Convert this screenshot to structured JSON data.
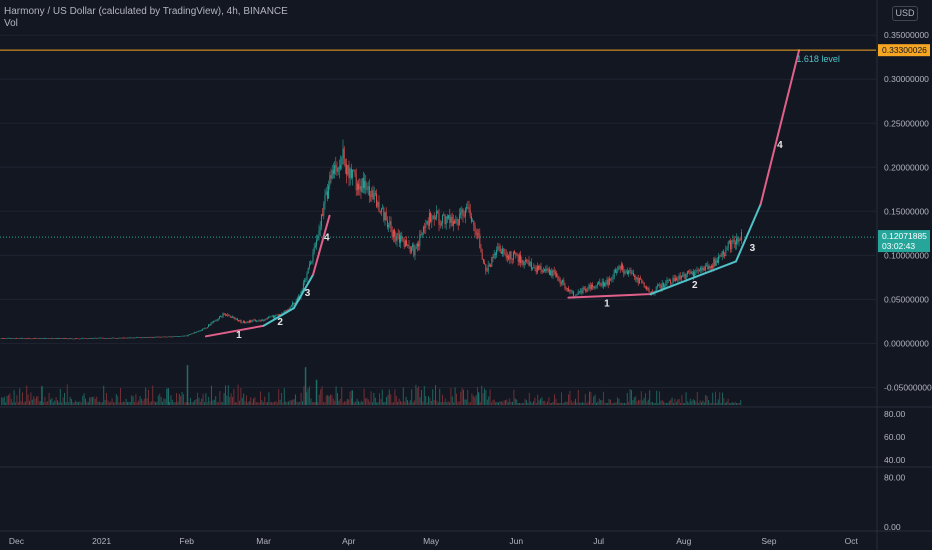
{
  "header": {
    "symbol_line": "Harmony / US Dollar (calculated by TradingView), 4h, BINANCE",
    "volume_label": "Vol",
    "currency_button": "USD"
  },
  "colors": {
    "background": "#131722",
    "up": "#26a69a",
    "down": "#ef5350",
    "pink_line": "#e0608a",
    "teal_line": "#4fc3c8",
    "level_line": "#f5a623",
    "grid": "#1f2430",
    "axis_text": "#b2b5be"
  },
  "chart_data": {
    "type": "candlestick",
    "title": "Harmony / US Dollar (calculated by TradingView), 4h, BINANCE",
    "x_ticks": [
      "Dec",
      "2021",
      "Feb",
      "Mar",
      "Apr",
      "May",
      "Jun",
      "Jul",
      "Aug",
      "Sep",
      "Oct"
    ],
    "x_range": [
      "2020-11-25",
      "2021-10-10"
    ],
    "y_ticks": [
      "0.35000000",
      "0.30000000",
      "0.25000000",
      "0.20000000",
      "0.15000000",
      "0.10000000",
      "0.05000000",
      "0.00000000",
      "-0.05000000"
    ],
    "ylim": [
      -0.07,
      0.365
    ],
    "price_path": [
      {
        "date": "2020-11-25",
        "price": 0.0058
      },
      {
        "date": "2020-12-20",
        "price": 0.0055
      },
      {
        "date": "2021-01-10",
        "price": 0.0062
      },
      {
        "date": "2021-01-25",
        "price": 0.0075
      },
      {
        "date": "2021-02-01",
        "price": 0.0085
      },
      {
        "date": "2021-02-08",
        "price": 0.018
      },
      {
        "date": "2021-02-15",
        "price": 0.034
      },
      {
        "date": "2021-02-21",
        "price": 0.024
      },
      {
        "date": "2021-03-01",
        "price": 0.027
      },
      {
        "date": "2021-03-08",
        "price": 0.034
      },
      {
        "date": "2021-03-14",
        "price": 0.052
      },
      {
        "date": "2021-03-19",
        "price": 0.1
      },
      {
        "date": "2021-03-23",
        "price": 0.155
      },
      {
        "date": "2021-03-26",
        "price": 0.2
      },
      {
        "date": "2021-03-30",
        "price": 0.21
      },
      {
        "date": "2021-04-03",
        "price": 0.185
      },
      {
        "date": "2021-04-10",
        "price": 0.17
      },
      {
        "date": "2021-04-17",
        "price": 0.125
      },
      {
        "date": "2021-04-25",
        "price": 0.105
      },
      {
        "date": "2021-05-01",
        "price": 0.145
      },
      {
        "date": "2021-05-10",
        "price": 0.135
      },
      {
        "date": "2021-05-14",
        "price": 0.155
      },
      {
        "date": "2021-05-18",
        "price": 0.125
      },
      {
        "date": "2021-05-21",
        "price": 0.08
      },
      {
        "date": "2021-05-25",
        "price": 0.105
      },
      {
        "date": "2021-06-01",
        "price": 0.098
      },
      {
        "date": "2021-06-08",
        "price": 0.085
      },
      {
        "date": "2021-06-15",
        "price": 0.078
      },
      {
        "date": "2021-06-22",
        "price": 0.055
      },
      {
        "date": "2021-06-28",
        "price": 0.065
      },
      {
        "date": "2021-07-05",
        "price": 0.07
      },
      {
        "date": "2021-07-08",
        "price": 0.088
      },
      {
        "date": "2021-07-14",
        "price": 0.076
      },
      {
        "date": "2021-07-20",
        "price": 0.058
      },
      {
        "date": "2021-07-27",
        "price": 0.072
      },
      {
        "date": "2021-08-05",
        "price": 0.08
      },
      {
        "date": "2021-08-12",
        "price": 0.092
      },
      {
        "date": "2021-08-18",
        "price": 0.112
      },
      {
        "date": "2021-08-22",
        "price": 0.12
      }
    ],
    "current_price": {
      "value": 0.12071885,
      "label": "0.12071885",
      "countdown": "03:02:43"
    },
    "level": {
      "value": 0.333,
      "label": "0.33300026",
      "name": "1.618 level"
    },
    "wave_lines": [
      {
        "color": "pink",
        "points": [
          {
            "date": "2021-02-08",
            "price": 0.008
          },
          {
            "date": "2021-03-01",
            "price": 0.02
          }
        ]
      },
      {
        "color": "teal",
        "points": [
          {
            "date": "2021-03-01",
            "price": 0.02
          },
          {
            "date": "2021-03-12",
            "price": 0.04
          }
        ]
      },
      {
        "color": "teal",
        "points": [
          {
            "date": "2021-03-12",
            "price": 0.04
          },
          {
            "date": "2021-03-19",
            "price": 0.078
          }
        ]
      },
      {
        "color": "pink",
        "points": [
          {
            "date": "2021-03-19",
            "price": 0.078
          },
          {
            "date": "2021-03-25",
            "price": 0.145
          }
        ]
      },
      {
        "color": "pink",
        "points": [
          {
            "date": "2021-06-20",
            "price": 0.052
          },
          {
            "date": "2021-07-20",
            "price": 0.056
          }
        ]
      },
      {
        "color": "teal",
        "points": [
          {
            "date": "2021-07-20",
            "price": 0.056
          },
          {
            "date": "2021-08-20",
            "price": 0.093
          }
        ]
      },
      {
        "color": "teal",
        "points": [
          {
            "date": "2021-08-20",
            "price": 0.093
          },
          {
            "date": "2021-08-29",
            "price": 0.158
          }
        ]
      },
      {
        "color": "pink",
        "points": [
          {
            "date": "2021-08-29",
            "price": 0.158
          },
          {
            "date": "2021-09-12",
            "price": 0.333
          }
        ]
      }
    ],
    "wave_labels": [
      {
        "text": "1",
        "date": "2021-02-20",
        "price": 0.006
      },
      {
        "text": "2",
        "date": "2021-03-07",
        "price": 0.021
      },
      {
        "text": "3",
        "date": "2021-03-17",
        "price": 0.054
      },
      {
        "text": "4",
        "date": "2021-03-24",
        "price": 0.117
      },
      {
        "text": "1",
        "date": "2021-07-04",
        "price": 0.042
      },
      {
        "text": "2",
        "date": "2021-08-05",
        "price": 0.063
      },
      {
        "text": "3",
        "date": "2021-08-26",
        "price": 0.105
      },
      {
        "text": "4",
        "date": "2021-09-05",
        "price": 0.222
      }
    ],
    "volume_spikes": [
      {
        "date": "2021-02-01",
        "rel": 0.95
      },
      {
        "date": "2021-03-16",
        "rel": 0.9
      },
      {
        "date": "2021-03-20",
        "rel": 0.6
      },
      {
        "date": "2020-12-10",
        "rel": 0.45
      },
      {
        "date": "2021-01-25",
        "rel": 0.4
      },
      {
        "date": "2021-04-02",
        "rel": 0.35
      },
      {
        "date": "2021-05-18",
        "rel": 0.3
      }
    ],
    "indicator1_ticks": [
      "80.00",
      "60.00",
      "40.00"
    ],
    "indicator1_range": [
      35,
      85
    ],
    "indicator2_ticks": [
      "80.00",
      "0.00"
    ],
    "indicator2_range": [
      -5,
      95
    ]
  }
}
